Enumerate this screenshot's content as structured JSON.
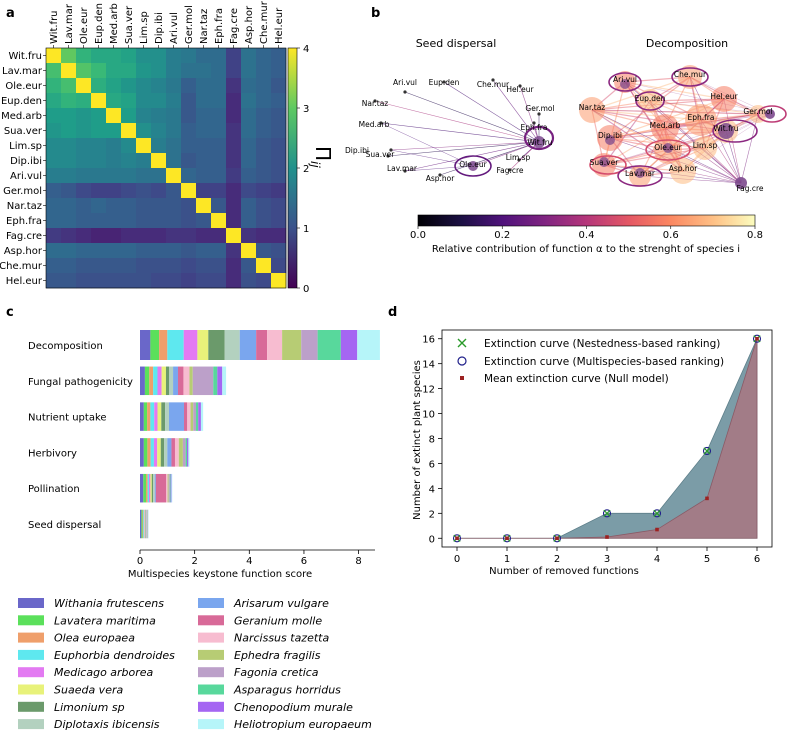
{
  "panel_labels": {
    "a": "a",
    "b": "b",
    "c": "c",
    "d": "d"
  },
  "species_codes": [
    "Wit.fru",
    "Lav.mar",
    "Ole.eur",
    "Eup.den",
    "Med.arb",
    "Sua.ver",
    "Lim.sp",
    "Dip.ibi",
    "Ari.vul",
    "Ger.mol",
    "Nar.taz",
    "Eph.fra",
    "Fag.cre",
    "Asp.hor",
    "Che.mur",
    "Hel.eur"
  ],
  "colors": {
    "species": [
      "#6a67c9",
      "#5be05b",
      "#ef9f6b",
      "#5ee8ef",
      "#e37af2",
      "#e8f27a",
      "#6b9a6b",
      "#b3d1bf",
      "#7aa6ee",
      "#d86a98",
      "#f7bcd0",
      "#b7cc74",
      "#bca0c9",
      "#58d89c",
      "#a566f2",
      "#b6f5f9"
    ],
    "heatmap_low": "#440154",
    "heatmap_high": "#fde725",
    "area_nested": "#7b9ca7",
    "area_null": "#a27c87",
    "cross_marker": "#2a9a2a",
    "circle_marker": "#1f1f8a",
    "square_marker": "#9c2222",
    "network_node": "#7d4a8e"
  },
  "chart_data": [
    {
      "panel": "a",
      "type": "heatmap",
      "rows": [
        "Wit.fru",
        "Lav.mar",
        "Ole.eur",
        "Eup.den",
        "Med.arb",
        "Sua.ver",
        "Lim.sp",
        "Dip.ibi",
        "Ari.vul",
        "Ger.mol",
        "Nar.taz",
        "Eph.fra",
        "Fag.cre",
        "Asp.hor",
        "Che.mur",
        "Hel.eur"
      ],
      "cols": [
        "Wit.fru",
        "Lav.mar",
        "Ole.eur",
        "Eup.den",
        "Med.arb",
        "Sua.ver",
        "Lim.sp",
        "Dip.ibi",
        "Ari.vul",
        "Ger.mol",
        "Nar.taz",
        "Eph.fra",
        "Fag.cre",
        "Asp.hor",
        "Che.mur",
        "Hel.eur"
      ],
      "colorbar_label": "Π",
      "colorbar_sub": "ij",
      "colorbar_ticks": [
        0,
        1,
        2,
        3,
        4
      ],
      "vmin": 0,
      "vmax": 4,
      "values": [
        [
          4.0,
          3.0,
          2.6,
          2.4,
          2.4,
          2.3,
          2.0,
          2.0,
          1.7,
          1.6,
          1.4,
          1.4,
          0.8,
          1.5,
          1.3,
          1.2
        ],
        [
          2.8,
          4.0,
          2.9,
          2.7,
          2.4,
          2.4,
          2.1,
          2.0,
          1.7,
          1.5,
          1.5,
          1.4,
          0.8,
          1.5,
          1.3,
          1.2
        ],
        [
          2.6,
          2.8,
          4.0,
          2.5,
          2.3,
          2.1,
          1.9,
          1.8,
          1.6,
          1.2,
          1.4,
          1.4,
          0.6,
          1.4,
          1.3,
          1.1
        ],
        [
          2.4,
          2.6,
          2.5,
          4.0,
          2.4,
          2.3,
          1.9,
          1.9,
          1.7,
          1.1,
          1.4,
          1.4,
          0.5,
          1.5,
          1.3,
          1.2
        ],
        [
          2.2,
          2.2,
          2.1,
          2.2,
          4.0,
          2.2,
          1.8,
          1.7,
          1.6,
          1.1,
          1.3,
          1.3,
          0.5,
          1.4,
          1.2,
          1.1
        ],
        [
          2.1,
          2.2,
          2.1,
          2.2,
          2.2,
          4.0,
          2.0,
          1.8,
          1.6,
          1.2,
          1.3,
          1.3,
          0.6,
          1.4,
          1.2,
          1.1
        ],
        [
          1.9,
          1.9,
          1.8,
          1.8,
          1.7,
          1.9,
          4.0,
          1.7,
          1.5,
          1.2,
          1.2,
          1.2,
          0.6,
          1.3,
          1.1,
          1.0
        ],
        [
          1.9,
          1.9,
          1.8,
          1.8,
          1.7,
          1.8,
          1.7,
          4.0,
          1.5,
          1.1,
          1.2,
          1.2,
          0.6,
          1.3,
          1.1,
          1.0
        ],
        [
          1.7,
          1.7,
          1.6,
          1.6,
          1.6,
          1.6,
          1.5,
          1.5,
          4.0,
          1.3,
          1.2,
          1.2,
          0.7,
          1.2,
          1.1,
          1.0
        ],
        [
          1.2,
          1.1,
          0.9,
          0.8,
          0.8,
          0.9,
          1.0,
          0.9,
          1.1,
          4.0,
          0.8,
          0.8,
          0.5,
          0.9,
          0.8,
          0.7
        ],
        [
          1.3,
          1.3,
          1.2,
          1.3,
          1.2,
          1.2,
          1.1,
          1.1,
          1.1,
          1.0,
          4.0,
          1.1,
          0.5,
          1.2,
          1.0,
          0.9
        ],
        [
          1.3,
          1.3,
          1.2,
          1.2,
          1.2,
          1.2,
          1.1,
          1.1,
          1.1,
          1.0,
          1.1,
          4.0,
          0.5,
          1.2,
          1.0,
          0.9
        ],
        [
          0.7,
          0.6,
          0.5,
          0.4,
          0.4,
          0.5,
          0.5,
          0.5,
          0.6,
          0.6,
          0.5,
          0.5,
          4.0,
          0.6,
          0.5,
          0.5
        ],
        [
          1.4,
          1.4,
          1.3,
          1.3,
          1.3,
          1.3,
          1.2,
          1.2,
          1.2,
          1.1,
          1.2,
          1.2,
          0.6,
          4.0,
          1.1,
          1.0
        ],
        [
          1.2,
          1.2,
          1.1,
          1.1,
          1.1,
          1.1,
          1.0,
          1.0,
          1.0,
          0.9,
          1.0,
          1.0,
          0.5,
          1.1,
          4.0,
          0.9
        ],
        [
          1.1,
          1.1,
          1.0,
          1.0,
          1.0,
          1.0,
          1.0,
          0.9,
          0.9,
          0.8,
          0.9,
          0.9,
          0.5,
          1.0,
          0.9,
          4.0
        ]
      ]
    },
    {
      "panel": "b",
      "type": "network",
      "networks": [
        {
          "title": "Seed dispersal",
          "labels": [
            "Ari.vul",
            "Eup.den",
            "Che.mur",
            "Hel.eur",
            "Nar.taz",
            "Ger.mol",
            "Med.arb",
            "Eph.fra",
            "Dip.ibi",
            "Wit.fru",
            "Sua.ver",
            "Lim.sp",
            "Lav.mar",
            "Ole.eur",
            "Fag.cre",
            "Asp.hor"
          ]
        },
        {
          "title": "Decomposition",
          "labels": [
            "Ari.vul",
            "Che.mur",
            "Eup.den",
            "Hel.eur",
            "Nar.taz",
            "Ger.mol",
            "Med.arb",
            "Eph.fra",
            "Wit.fru",
            "Dip.ibi",
            "Ole.eur",
            "Lim.sp",
            "Sua.ver",
            "Lav.mar",
            "Asp.hor",
            "Fag.cre"
          ]
        }
      ],
      "colorbar": {
        "min": 0.0,
        "max": 0.8,
        "ticks": [
          "0.0",
          "0.2",
          "0.4",
          "0.6",
          "0.8"
        ],
        "label": "Relative contribution of function α to the strenght of species i"
      }
    },
    {
      "panel": "c",
      "type": "bar",
      "orientation": "horizontal-stacked",
      "categories": [
        "Decomposition",
        "Fungal pathogenicity",
        "Nutrient uptake",
        "Herbivory",
        "Pollination",
        "Seed dispersal"
      ],
      "xlabel": "Multispecies keystone function score",
      "xlim": [
        0,
        8.6
      ],
      "xticks": [
        0,
        2,
        4,
        6,
        8
      ],
      "series": [
        {
          "name": "Withania frutescens",
          "values": [
            0.38,
            0.18,
            0.14,
            0.14,
            0.12,
            0.05
          ]
        },
        {
          "name": "Lavatera maritima",
          "values": [
            0.32,
            0.16,
            0.12,
            0.13,
            0.1,
            0.04
          ]
        },
        {
          "name": "Olea europaea",
          "values": [
            0.3,
            0.14,
            0.12,
            0.12,
            0.06,
            0.03
          ]
        },
        {
          "name": "Euphorbia dendroides",
          "values": [
            0.6,
            0.16,
            0.14,
            0.12,
            0.05,
            0.03
          ]
        },
        {
          "name": "Medicago arborea",
          "values": [
            0.5,
            0.15,
            0.12,
            0.12,
            0.05,
            0.02
          ]
        },
        {
          "name": "Suaeda vera",
          "values": [
            0.4,
            0.16,
            0.14,
            0.13,
            0.05,
            0.02
          ]
        },
        {
          "name": "Limonium sp",
          "values": [
            0.6,
            0.12,
            0.14,
            0.12,
            0.05,
            0.02
          ]
        },
        {
          "name": "Diplotaxis ibicensis",
          "values": [
            0.55,
            0.14,
            0.14,
            0.12,
            0.06,
            0.02
          ]
        },
        {
          "name": "Arisarum vulgare",
          "values": [
            0.6,
            0.18,
            0.55,
            0.15,
            0.04,
            0.01
          ]
        },
        {
          "name": "Geranium molle",
          "values": [
            0.4,
            0.2,
            0.12,
            0.13,
            0.38,
            0.01
          ]
        },
        {
          "name": "Narcissus tazetta",
          "values": [
            0.55,
            0.22,
            0.12,
            0.14,
            0.05,
            0.01
          ]
        },
        {
          "name": "Ephedra fragilis",
          "values": [
            0.7,
            0.12,
            0.1,
            0.15,
            0.04,
            0.01
          ]
        },
        {
          "name": "Fagonia cretica",
          "values": [
            0.6,
            0.75,
            0.1,
            0.1,
            0.04,
            0.01
          ]
        },
        {
          "name": "Asparagus horridus",
          "values": [
            0.85,
            0.15,
            0.08,
            0.05,
            0.03,
            0.01
          ]
        },
        {
          "name": "Chenopodium murale",
          "values": [
            0.6,
            0.18,
            0.1,
            0.05,
            0.03,
            0.01
          ]
        },
        {
          "name": "Heliotropium europaeum",
          "values": [
            0.83,
            0.14,
            0.08,
            0.04,
            0.03,
            0.01
          ]
        }
      ]
    },
    {
      "panel": "d",
      "type": "line",
      "x": [
        0,
        1,
        2,
        3,
        4,
        5,
        6
      ],
      "xlabel": "Number of removed functions",
      "ylabel": "Number of extinct plant species",
      "xlim": [
        -0.3,
        6.3
      ],
      "ylim": [
        -0.7,
        16.7
      ],
      "yticks": [
        0,
        2,
        4,
        6,
        8,
        10,
        12,
        14,
        16
      ],
      "series": [
        {
          "name": "Extinction curve (Nestedness-based ranking)",
          "values": [
            0,
            0,
            0,
            2,
            2,
            7,
            16
          ]
        },
        {
          "name": "Extinction curve (Multispecies-based ranking)",
          "values": [
            0,
            0,
            0,
            2,
            2,
            7,
            16
          ]
        },
        {
          "name": "Mean extinction curve (Null model)",
          "values": [
            0,
            0,
            0,
            0.1,
            0.7,
            3.2,
            16
          ]
        }
      ]
    }
  ]
}
